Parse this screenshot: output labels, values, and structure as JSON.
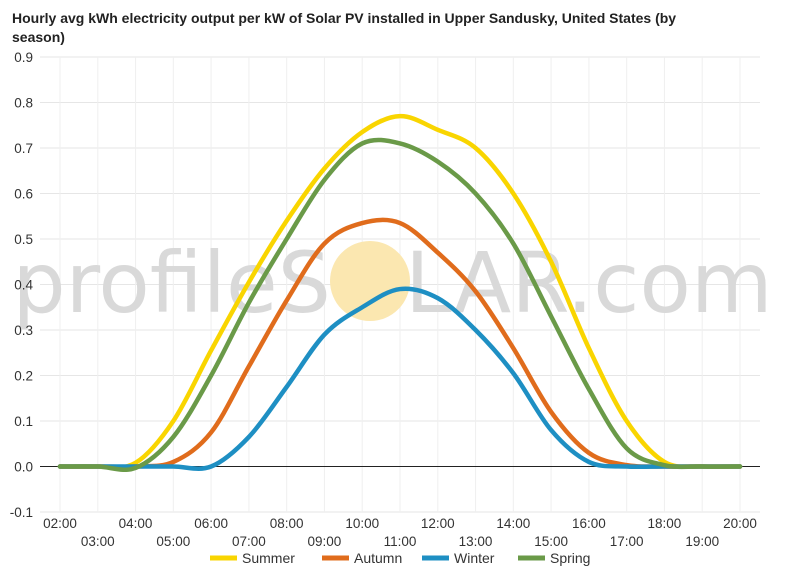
{
  "watermark": {
    "text_left": "profileS",
    "text_right": "LAR.com",
    "sun_color": "#fbe7b0"
  },
  "chart_data": {
    "type": "line",
    "title": "Hourly avg kWh electricity output per kW of Solar PV installed in Upper Sandusky, United States (by season)",
    "xlabel": "",
    "ylabel": "",
    "x_ticks_even": [
      "02:00",
      "04:00",
      "06:00",
      "08:00",
      "10:00",
      "12:00",
      "14:00",
      "16:00",
      "18:00",
      "20:00"
    ],
    "x_ticks_odd": [
      "03:00",
      "05:00",
      "07:00",
      "09:00",
      "11:00",
      "13:00",
      "15:00",
      "17:00",
      "19:00"
    ],
    "xlim": [
      2,
      20
    ],
    "ylim": [
      -0.1,
      0.9
    ],
    "y_ticks": [
      "-0.1",
      "0.0",
      "0.1",
      "0.2",
      "0.3",
      "0.4",
      "0.5",
      "0.6",
      "0.7",
      "0.8",
      "0.9"
    ],
    "grid": true,
    "legend_position": "bottom",
    "x": [
      2,
      3,
      4,
      5,
      6,
      7,
      8,
      9,
      10,
      11,
      12,
      13,
      14,
      15,
      16,
      17,
      18,
      19,
      20
    ],
    "series": [
      {
        "name": "Summer",
        "color": "#f9d500",
        "values": [
          0.0,
          0.0,
          0.008,
          0.1,
          0.255,
          0.405,
          0.54,
          0.655,
          0.735,
          0.77,
          0.74,
          0.7,
          0.6,
          0.45,
          0.26,
          0.1,
          0.01,
          0.0,
          0.0
        ]
      },
      {
        "name": "Autumn",
        "color": "#e06c1c",
        "values": [
          0.0,
          0.0,
          0.0,
          0.01,
          0.075,
          0.22,
          0.365,
          0.49,
          0.535,
          0.535,
          0.47,
          0.385,
          0.26,
          0.12,
          0.03,
          0.003,
          0.0,
          0.0,
          0.0
        ]
      },
      {
        "name": "Winter",
        "color": "#1e8fc3",
        "values": [
          0.0,
          0.0,
          0.0,
          0.0,
          0.0,
          0.065,
          0.175,
          0.29,
          0.35,
          0.39,
          0.37,
          0.3,
          0.205,
          0.08,
          0.01,
          0.0,
          0.0,
          0.0,
          0.0
        ]
      },
      {
        "name": "Spring",
        "color": "#6a9a48",
        "values": [
          0.0,
          0.0,
          -0.003,
          0.065,
          0.2,
          0.36,
          0.5,
          0.63,
          0.71,
          0.71,
          0.67,
          0.6,
          0.49,
          0.33,
          0.17,
          0.04,
          0.003,
          0.0,
          0.0
        ]
      }
    ]
  }
}
